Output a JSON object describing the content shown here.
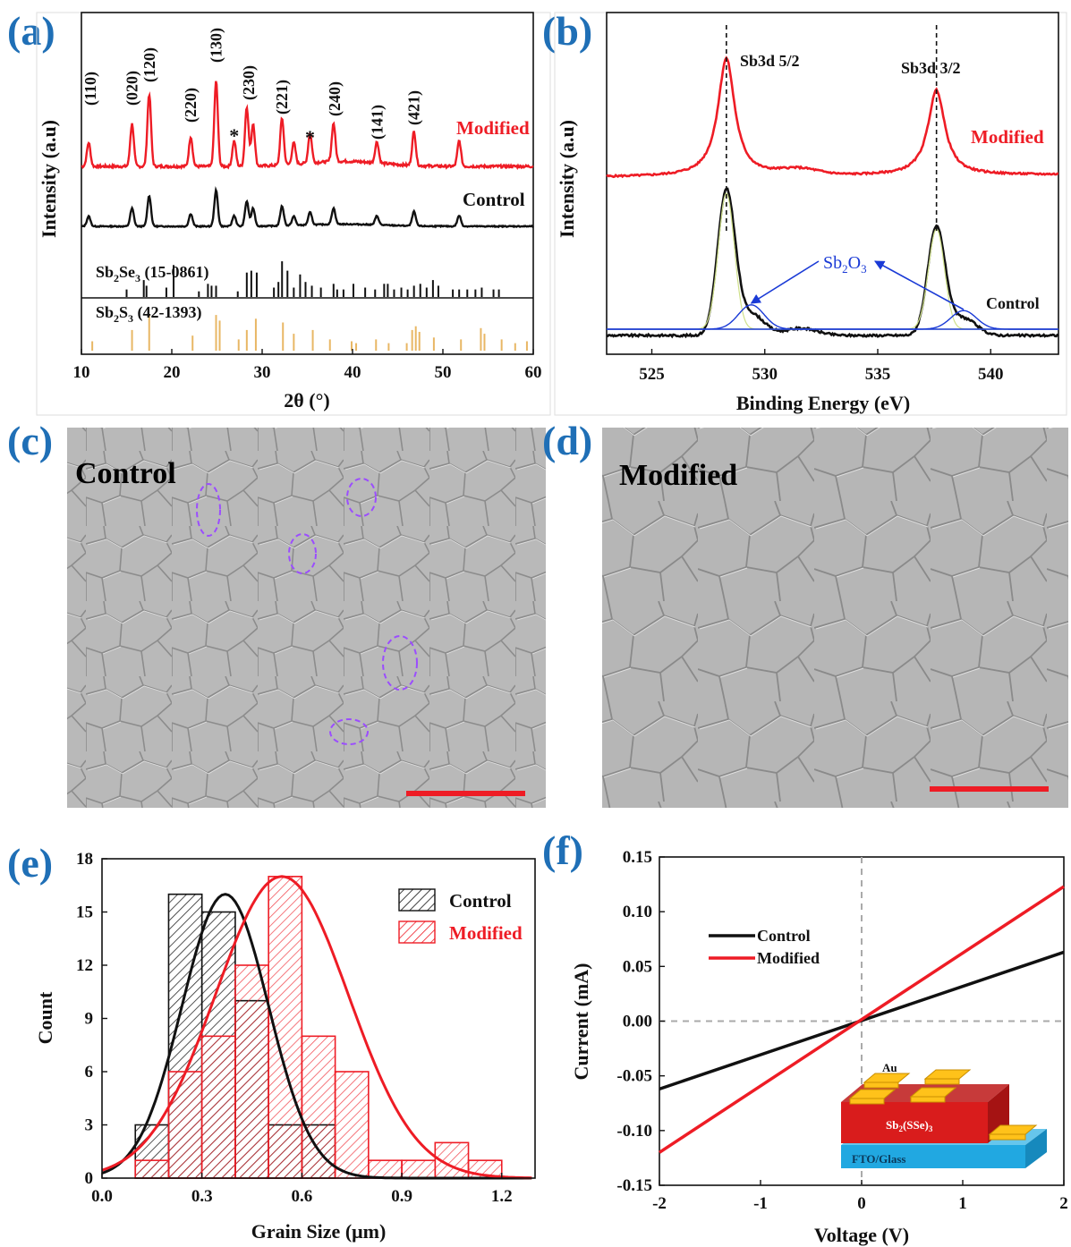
{
  "panels": {
    "a": "(a)",
    "b": "(b)",
    "c": "(c)",
    "d": "(d)",
    "e": "(e)",
    "f": "(f)"
  },
  "colors": {
    "modified": "#ee1c25",
    "control": "#111111",
    "panel_label": "#1f6fb6",
    "ref_se": "#111111",
    "ref_s": "#e8b765",
    "sb2o3": "#1a3ad6",
    "fit": "#cfe08a"
  },
  "chart_data": [
    {
      "id": "a",
      "type": "line",
      "xlabel": "2θ (°)",
      "ylabel": "Intensity (a.u)",
      "xlim": [
        10,
        60
      ],
      "xticks": [
        10,
        20,
        30,
        40,
        50,
        60
      ],
      "series": [
        {
          "name": "Modified",
          "color": "#ee1c25"
        },
        {
          "name": "Control",
          "color": "#111111"
        }
      ],
      "peaks": [
        {
          "pos": 10.8,
          "h": 0.28
        },
        {
          "pos": 15.6,
          "h": 0.5
        },
        {
          "pos": 17.5,
          "h": 0.85
        },
        {
          "pos": 22.1,
          "h": 0.35
        },
        {
          "pos": 24.9,
          "h": 1.0
        },
        {
          "pos": 26.9,
          "h": 0.3
        },
        {
          "pos": 28.3,
          "h": 0.7
        },
        {
          "pos": 29.0,
          "h": 0.5
        },
        {
          "pos": 32.2,
          "h": 0.55
        },
        {
          "pos": 33.5,
          "h": 0.25
        },
        {
          "pos": 35.3,
          "h": 0.35
        },
        {
          "pos": 37.9,
          "h": 0.45
        },
        {
          "pos": 42.7,
          "h": 0.25
        },
        {
          "pos": 46.8,
          "h": 0.4
        },
        {
          "pos": 51.8,
          "h": 0.3
        }
      ],
      "peak_labels": [
        {
          "x": 11.0,
          "text": "(110)"
        },
        {
          "x": 15.6,
          "text": "(020)"
        },
        {
          "x": 17.5,
          "text": "(120)"
        },
        {
          "x": 22.1,
          "text": "(220)"
        },
        {
          "x": 24.9,
          "text": "(130)"
        },
        {
          "x": 28.5,
          "text": "(230)"
        },
        {
          "x": 32.2,
          "text": "(221)"
        },
        {
          "x": 38.0,
          "text": "(240)"
        },
        {
          "x": 42.7,
          "text": "(141)"
        },
        {
          "x": 46.8,
          "text": "(421)"
        }
      ],
      "stars": [
        26.9,
        35.3
      ],
      "star_text": "*",
      "labels": {
        "modified": "Modified",
        "control": "Control"
      },
      "references": [
        {
          "name_main": "Sb",
          "sub1": "2",
          "name_mid": "Se",
          "sub2": "3",
          "card": " (15-0861)",
          "color": "#111111",
          "lines": [
            [
              15.0,
              0.2
            ],
            [
              16.9,
              0.45
            ],
            [
              17.2,
              0.3
            ],
            [
              19.4,
              0.25
            ],
            [
              20.2,
              0.85
            ],
            [
              23.0,
              0.15
            ],
            [
              24.0,
              0.35
            ],
            [
              24.4,
              0.3
            ],
            [
              24.9,
              0.3
            ],
            [
              27.3,
              0.15
            ],
            [
              28.3,
              0.65
            ],
            [
              28.8,
              0.7
            ],
            [
              29.4,
              0.65
            ],
            [
              31.3,
              0.25
            ],
            [
              31.8,
              0.4
            ],
            [
              32.2,
              0.95
            ],
            [
              32.8,
              0.7
            ],
            [
              33.5,
              0.25
            ],
            [
              34.2,
              0.6
            ],
            [
              34.8,
              0.4
            ],
            [
              35.5,
              0.3
            ],
            [
              36.5,
              0.25
            ],
            [
              37.9,
              0.35
            ],
            [
              38.3,
              0.2
            ],
            [
              39.0,
              0.2
            ],
            [
              40.1,
              0.35
            ],
            [
              41.4,
              0.25
            ],
            [
              42.5,
              0.2
            ],
            [
              43.5,
              0.35
            ],
            [
              43.9,
              0.35
            ],
            [
              44.6,
              0.2
            ],
            [
              45.4,
              0.25
            ],
            [
              46.1,
              0.2
            ],
            [
              46.8,
              0.3
            ],
            [
              47.5,
              0.35
            ],
            [
              48.2,
              0.25
            ],
            [
              48.9,
              0.45
            ],
            [
              49.5,
              0.3
            ],
            [
              51.1,
              0.2
            ],
            [
              51.8,
              0.2
            ],
            [
              52.7,
              0.2
            ],
            [
              53.6,
              0.2
            ],
            [
              54.3,
              0.25
            ],
            [
              55.6,
              0.2
            ],
            [
              56.2,
              0.2
            ]
          ]
        },
        {
          "name_main": "Sb",
          "sub1": "2",
          "name_mid": "S",
          "sub2": "3",
          "card": "  (42-1393)",
          "color": "#e8b765",
          "lines": [
            [
              11.2,
              0.25
            ],
            [
              15.6,
              0.55
            ],
            [
              17.5,
              0.95
            ],
            [
              22.3,
              0.4
            ],
            [
              24.9,
              0.95
            ],
            [
              25.3,
              0.8
            ],
            [
              27.4,
              0.3
            ],
            [
              28.3,
              0.55
            ],
            [
              29.3,
              0.85
            ],
            [
              32.3,
              0.75
            ],
            [
              33.5,
              0.45
            ],
            [
              35.6,
              0.55
            ],
            [
              37.5,
              0.3
            ],
            [
              39.9,
              0.25
            ],
            [
              40.4,
              0.2
            ],
            [
              42.6,
              0.3
            ],
            [
              44.0,
              0.2
            ],
            [
              46.0,
              0.2
            ],
            [
              46.6,
              0.55
            ],
            [
              47.0,
              0.65
            ],
            [
              47.4,
              0.5
            ],
            [
              49.0,
              0.35
            ],
            [
              52.0,
              0.3
            ],
            [
              54.2,
              0.6
            ],
            [
              54.6,
              0.45
            ],
            [
              56.5,
              0.3
            ],
            [
              58.0,
              0.2
            ],
            [
              59.3,
              0.25
            ]
          ]
        }
      ]
    },
    {
      "id": "b",
      "type": "line",
      "xlabel": "Binding Energy (eV)",
      "ylabel": "Intensity (a.u)",
      "xlim": [
        523,
        543
      ],
      "xticks": [
        525,
        530,
        535,
        540
      ],
      "series": [
        {
          "name": "Modified",
          "color": "#ee1c25"
        },
        {
          "name": "Control",
          "color": "#111111"
        }
      ],
      "peak_marks": [
        {
          "x": 528.3,
          "text": "Sb3d 5/2"
        },
        {
          "x": 537.6,
          "text": "Sb3d 3/2"
        }
      ],
      "sb2o3": {
        "main": "Sb",
        "sub1": "2",
        "mid": "O",
        "sub2": "3",
        "x": 532.6,
        "arrow_targets": [
          529.4,
          538.8
        ]
      },
      "labels": {
        "modified": "Modified",
        "control": "Control"
      }
    },
    {
      "id": "e",
      "type": "bar",
      "xlabel": "Grain Size (μm)",
      "ylabel": "Count",
      "xlim": [
        0.0,
        1.3
      ],
      "ylim": [
        0,
        18
      ],
      "xticks": [
        "0.0",
        "0.3",
        "0.6",
        "0.9",
        "1.2"
      ],
      "yticks": [
        0,
        3,
        6,
        9,
        12,
        15,
        18
      ],
      "bin_edges": [
        0.1,
        0.2,
        0.3,
        0.4,
        0.5,
        0.6,
        0.7,
        0.8,
        0.9,
        1.0,
        1.1,
        1.2
      ],
      "series": [
        {
          "name": "Control",
          "color": "#111111",
          "values": [
            3,
            16,
            15,
            10,
            3,
            3,
            0,
            0,
            0,
            0,
            0
          ],
          "fit_mean": 0.37,
          "fit_sd": 0.13,
          "fit_peak": 16
        },
        {
          "name": "Modified",
          "color": "#ee1c25",
          "values": [
            1,
            6,
            8,
            12,
            17,
            8,
            6,
            1,
            1,
            2,
            1
          ],
          "fit_mean": 0.54,
          "fit_sd": 0.2,
          "fit_peak": 17
        }
      ]
    },
    {
      "id": "f",
      "type": "line",
      "xlabel": "Voltage (V)",
      "ylabel": "Current (mA)",
      "xlim": [
        -2,
        2
      ],
      "ylim": [
        -0.15,
        0.15
      ],
      "xticks": [
        "-2",
        "-1",
        "0",
        "1",
        "2"
      ],
      "yticks": [
        "0.15",
        "0.10",
        "0.05",
        "0.00",
        "-0.05",
        "-0.10",
        "-0.15"
      ],
      "series": [
        {
          "name": "Control",
          "color": "#111111",
          "x": [
            -2,
            2
          ],
          "y": [
            -0.062,
            0.063
          ]
        },
        {
          "name": "Modified",
          "color": "#ee1c25",
          "x": [
            -2,
            2
          ],
          "y": [
            -0.12,
            0.123
          ]
        }
      ],
      "inset": {
        "au": "Au",
        "absorber_main": "Sb",
        "absorber_sub1": "2",
        "absorber_mid": "(SSe)",
        "absorber_sub2": "3",
        "substrate": "FTO/Glass"
      }
    }
  ],
  "sem": {
    "c": {
      "title": "Control",
      "title_color": "#111111"
    },
    "d": {
      "title": "Modified",
      "title_color": "#ee1c25"
    }
  }
}
